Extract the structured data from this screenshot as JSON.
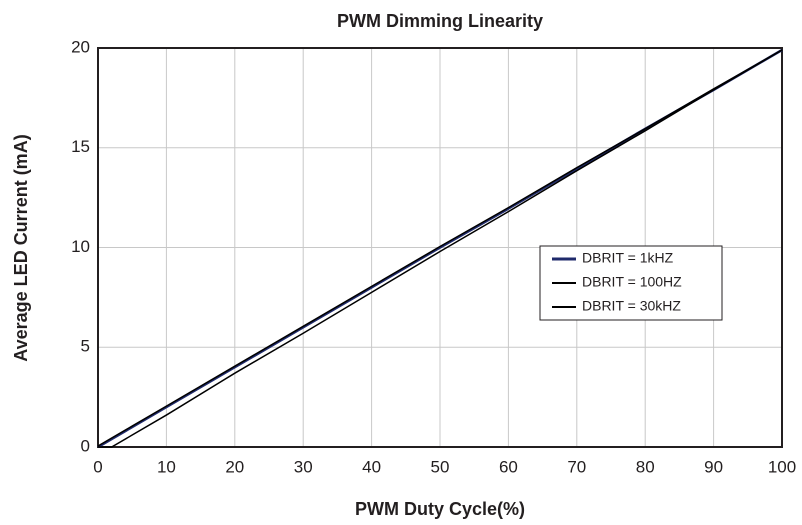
{
  "chart_data": {
    "type": "line",
    "title": "PWM Dimming Linearity",
    "x_label": "PWM Duty Cycle(%)",
    "y_label": "Average LED Current (mA)",
    "x": [
      0,
      2,
      5,
      10,
      20,
      30,
      40,
      50,
      60,
      70,
      80,
      90,
      100
    ],
    "series": [
      {
        "name": "DBRIT = 1kHZ",
        "color": "#1f2a6b",
        "values": [
          0,
          0.4,
          1,
          2,
          4,
          6,
          8,
          10,
          11.95,
          13.95,
          15.95,
          17.9,
          19.9
        ]
      },
      {
        "name": "DBRIT = 100HZ",
        "color": "#000000",
        "values": [
          0.05,
          0.45,
          1.05,
          2.05,
          4.05,
          6.05,
          8.05,
          10.05,
          12,
          14,
          15.95,
          17.95,
          19.9
        ]
      },
      {
        "name": "DBRIT = 30kHZ",
        "color": "#000000",
        "values": [
          0,
          0,
          0.6,
          1.6,
          3.7,
          5.7,
          7.75,
          9.8,
          11.8,
          13.85,
          15.85,
          17.9,
          19.9
        ]
      }
    ],
    "xlim": [
      0,
      100
    ],
    "xticks": [
      0,
      10,
      20,
      30,
      40,
      50,
      60,
      70,
      80,
      90,
      100
    ],
    "ylim": [
      0,
      20
    ],
    "yticks": [
      0,
      5,
      10,
      15,
      20
    ],
    "grid": true,
    "legend": "right"
  }
}
